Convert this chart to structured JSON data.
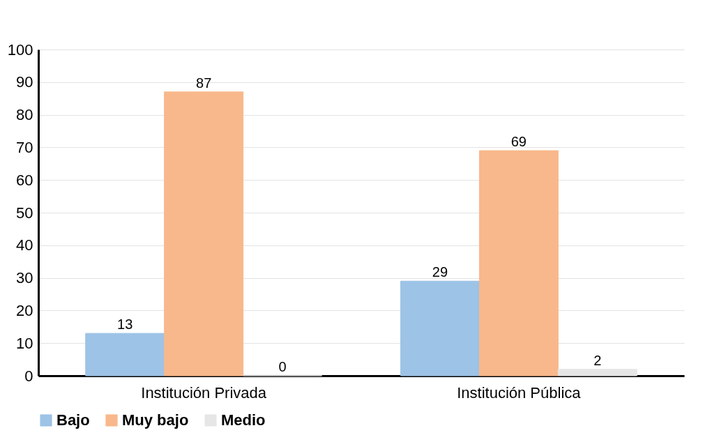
{
  "chart_data": {
    "type": "bar",
    "categories": [
      "Institución Privada",
      "Institución Pública"
    ],
    "series": [
      {
        "name": "Bajo",
        "color": "#9dc3e6",
        "values": [
          13,
          29
        ]
      },
      {
        "name": "Muy bajo",
        "color": "#f8b88b",
        "values": [
          87,
          69
        ]
      },
      {
        "name": "Medio",
        "color": "#e7e6e6",
        "values": [
          0,
          2
        ]
      }
    ],
    "ylim": [
      0,
      100
    ],
    "yticks": [
      0,
      10,
      20,
      30,
      40,
      50,
      60,
      70,
      80,
      90,
      100
    ],
    "grid": "y",
    "legend": "bottom",
    "data_labels": true
  }
}
